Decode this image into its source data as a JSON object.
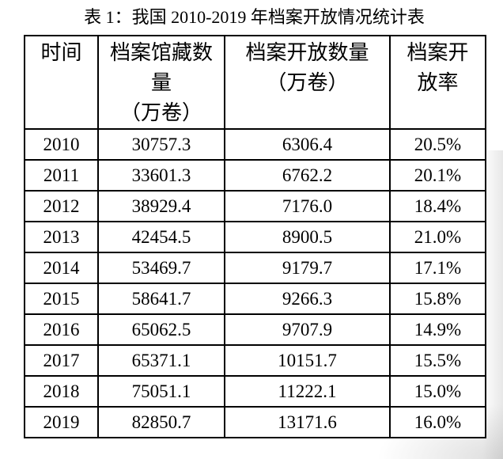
{
  "colors": {
    "background": "#ffffff",
    "text": "#000000",
    "table_border": "#000000",
    "edge_shadow": "#b2b2b2"
  },
  "title": "表 1：我国 2010-2019 年档案开放情况统计表",
  "table": {
    "headers": [
      {
        "lines": [
          "时间"
        ]
      },
      {
        "lines": [
          "档案馆藏数",
          "量",
          "（万卷）"
        ]
      },
      {
        "lines": [
          "档案开放数量",
          "（万卷）"
        ]
      },
      {
        "lines": [
          "档案开",
          "放率"
        ]
      }
    ],
    "rows": [
      [
        "2010",
        "30757.3",
        "6306.4",
        "20.5%"
      ],
      [
        "2011",
        "33601.3",
        "6762.2",
        "20.1%"
      ],
      [
        "2012",
        "38929.4",
        "7176.0",
        "18.4%"
      ],
      [
        "2013",
        "42454.5",
        "8900.5",
        "21.0%"
      ],
      [
        "2014",
        "53469.7",
        "9179.7",
        "17.1%"
      ],
      [
        "2015",
        "58641.7",
        "9266.3",
        "15.8%"
      ],
      [
        "2016",
        "65062.5",
        "9707.9",
        "14.9%"
      ],
      [
        "2017",
        "65371.1",
        "10151.7",
        "15.5%"
      ],
      [
        "2018",
        "75051.1",
        "11222.1",
        "15.0%"
      ],
      [
        "2019",
        "82850.7",
        "13171.6",
        "16.0%"
      ]
    ]
  }
}
